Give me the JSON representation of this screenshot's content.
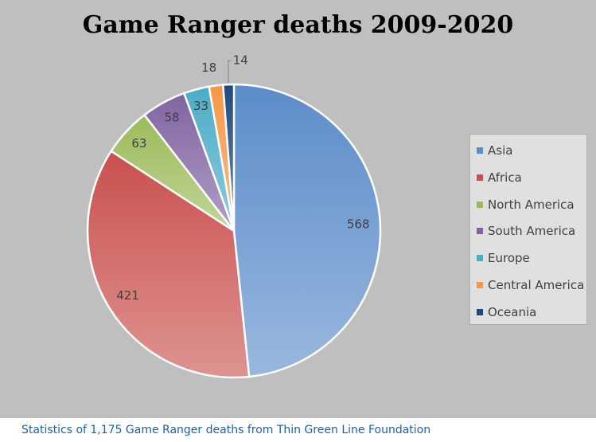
{
  "chart_data": {
    "type": "pie",
    "title": "Game Ranger deaths 2009-2020",
    "categories": [
      "Asia",
      "Africa",
      "North America",
      "South America",
      "Europe",
      "Central America",
      "Oceania"
    ],
    "values": [
      568,
      421,
      63,
      58,
      33,
      18,
      14
    ],
    "colors": [
      "#5b8cc9",
      "#c9504d",
      "#9bbb59",
      "#8064a2",
      "#4bacc6",
      "#f79646",
      "#1f497d"
    ],
    "legend_position": "right",
    "data_labels": true
  },
  "caption": "Statistics of 1,175 Game Ranger deaths from Thin Green Line Foundation"
}
